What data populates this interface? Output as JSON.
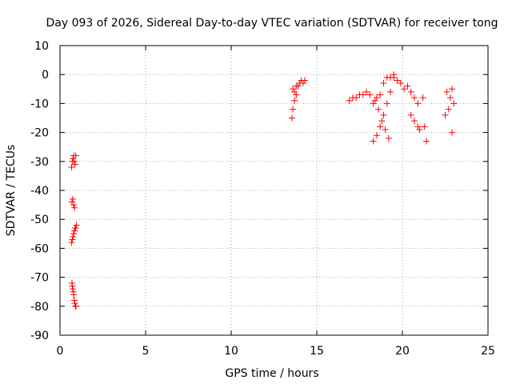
{
  "chart_data": {
    "type": "scatter",
    "title": "Day 093 of 2026, Sidereal Day-to-day VTEC variation (SDTVAR) for receiver tong",
    "xlabel": "GPS time / hours",
    "ylabel": "SDTVAR / TECUs",
    "xlim": [
      0,
      25
    ],
    "ylim": [
      -90,
      10
    ],
    "xticks": [
      "0",
      "5",
      "10",
      "15",
      "20",
      "25"
    ],
    "yticks": [
      "10",
      "0",
      "-10",
      "-20",
      "-30",
      "-40",
      "-50",
      "-60",
      "-70",
      "-80",
      "-90"
    ],
    "grid": true,
    "marker": "+",
    "color": "#ff0000",
    "series": [
      {
        "name": "SDTVAR",
        "x": [
          0.68,
          0.72,
          0.76,
          0.8,
          0.84,
          0.88,
          0.92,
          0.7,
          0.75,
          0.8,
          0.85,
          0.68,
          0.72,
          0.76,
          0.8,
          0.84,
          0.88,
          0.92,
          0.96,
          0.7,
          0.72,
          0.75,
          0.78,
          0.8,
          0.83,
          0.86,
          0.9,
          0.93,
          13.55,
          13.6,
          13.7,
          13.8,
          13.9,
          14.0,
          14.1,
          14.2,
          14.3,
          13.6,
          13.7,
          13.8,
          14.0,
          14.3,
          16.9,
          17.1,
          17.3,
          17.5,
          17.7,
          17.9,
          18.1,
          18.3,
          18.5,
          18.7,
          18.9,
          19.1,
          19.3,
          19.5,
          19.7,
          19.9,
          20.1,
          20.3,
          20.5,
          20.7,
          20.9,
          21.2,
          18.3,
          18.5,
          18.7,
          18.9,
          19.1,
          19.3,
          19.5,
          18.4,
          18.6,
          18.8,
          19.0,
          19.2,
          20.5,
          20.7,
          20.9,
          21.0,
          21.3,
          21.4,
          22.6,
          22.8,
          22.9,
          23.0,
          22.5,
          22.7,
          22.9
        ],
        "y": [
          -32,
          -30,
          -29,
          -28,
          -30,
          -31,
          -28,
          -44,
          -43,
          -45,
          -46,
          -58,
          -57,
          -56,
          -55,
          -54,
          -53,
          -53,
          -52,
          -72,
          -73,
          -74,
          -75,
          -76,
          -78,
          -79,
          -80,
          -80,
          -15,
          -12,
          -9,
          -7,
          -4,
          -3,
          -2,
          -3,
          -2,
          -5,
          -6,
          -4,
          -3,
          -2,
          -9,
          -8,
          -8,
          -7,
          -7,
          -6,
          -7,
          -10,
          -8,
          -7,
          -3,
          -1,
          -1,
          0,
          -2,
          -3,
          -5,
          -4,
          -6,
          -8,
          -10,
          -8,
          -23,
          -21,
          -18,
          -14,
          -10,
          -6,
          -1,
          -9,
          -12,
          -16,
          -19,
          -22,
          -14,
          -16,
          -18,
          -19,
          -18,
          -23,
          -6,
          -8,
          -5,
          -10,
          -14,
          -12,
          -20
        ]
      }
    ]
  }
}
